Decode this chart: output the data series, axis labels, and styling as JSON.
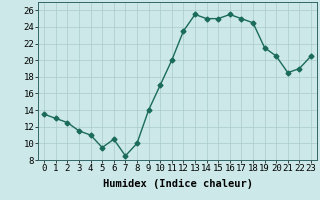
{
  "x": [
    0,
    1,
    2,
    3,
    4,
    5,
    6,
    7,
    8,
    9,
    10,
    11,
    12,
    13,
    14,
    15,
    16,
    17,
    18,
    19,
    20,
    21,
    22,
    23
  ],
  "y": [
    13.5,
    13,
    12.5,
    11.5,
    11,
    9.5,
    10.5,
    8.5,
    10,
    14,
    17,
    20,
    23.5,
    25.5,
    25,
    25,
    25.5,
    25,
    24.5,
    21.5,
    20.5,
    18.5,
    19,
    20.5
  ],
  "line_color": "#1a6b5a",
  "marker": "D",
  "marker_size": 2.5,
  "bg_color": "#cce8e8",
  "grid_color": "#aacccc",
  "xlabel": "Humidex (Indice chaleur)",
  "ylim": [
    8,
    27
  ],
  "xlim": [
    -0.5,
    23.5
  ],
  "yticks": [
    8,
    10,
    12,
    14,
    16,
    18,
    20,
    22,
    24,
    26
  ],
  "xticks": [
    0,
    1,
    2,
    3,
    4,
    5,
    6,
    7,
    8,
    9,
    10,
    11,
    12,
    13,
    14,
    15,
    16,
    17,
    18,
    19,
    20,
    21,
    22,
    23
  ],
  "xlabel_fontsize": 7.5,
  "tick_fontsize": 6.5,
  "line_width": 1.0
}
